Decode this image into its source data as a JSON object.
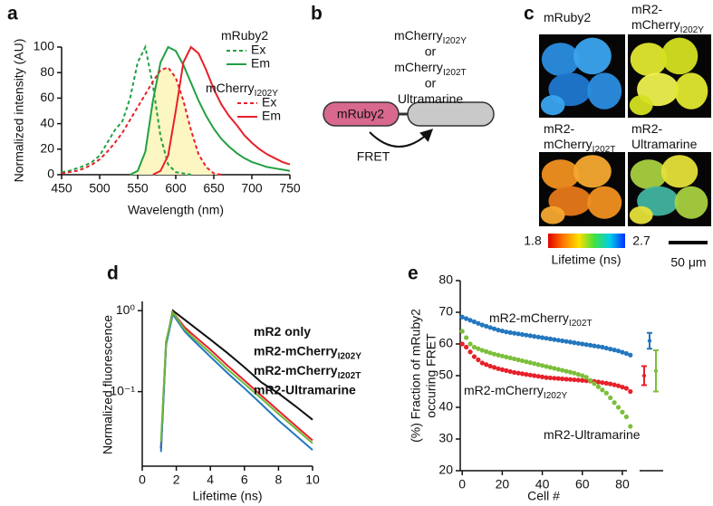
{
  "chart_data": [
    {
      "panel_label": "a",
      "type": "line",
      "xlabel": "Wavelength (nm)",
      "ylabel": "Normalized intensity (AU)",
      "xlim": [
        450,
        750
      ],
      "ylim": [
        0,
        100
      ],
      "xticks": [
        450,
        500,
        550,
        600,
        650,
        700,
        750
      ],
      "yticks": [
        0,
        20,
        40,
        60,
        80,
        100
      ],
      "x": [
        450,
        460,
        470,
        480,
        490,
        500,
        510,
        520,
        530,
        540,
        550,
        560,
        570,
        580,
        590,
        600,
        610,
        620,
        630,
        640,
        650,
        660,
        670,
        680,
        690,
        700,
        710,
        720,
        730,
        740,
        750
      ],
      "shade_between": [
        1,
        2
      ],
      "shade_color": "#fbf6c2",
      "legend_groups": [
        {
          "name": "mRuby2",
          "color": "#22a044"
        },
        {
          "name": "mCherry",
          "name_sub": "I202Y",
          "color": "#e8202a"
        }
      ],
      "series": [
        {
          "name": "Ex",
          "group": 0,
          "dash": true,
          "color": "#22a044",
          "values": [
            2,
            3,
            5,
            7,
            10,
            15,
            25,
            35,
            42,
            60,
            88,
            100,
            70,
            30,
            8,
            2,
            1,
            0,
            null,
            null,
            null,
            null,
            null,
            null,
            null,
            null,
            null,
            null,
            null,
            null,
            null
          ]
        },
        {
          "name": "Em",
          "group": 0,
          "dash": false,
          "color": "#22a044",
          "values": [
            null,
            null,
            null,
            null,
            null,
            null,
            null,
            null,
            null,
            0,
            3,
            18,
            58,
            88,
            100,
            97,
            86,
            72,
            58,
            46,
            36,
            28,
            22,
            17,
            13,
            10,
            8,
            6,
            5,
            4,
            3
          ]
        },
        {
          "name": "Ex",
          "group": 1,
          "dash": true,
          "color": "#e8202a",
          "values": [
            1,
            2,
            3,
            5,
            8,
            12,
            18,
            25,
            33,
            43,
            53,
            63,
            73,
            82,
            84,
            76,
            58,
            35,
            16,
            6,
            1,
            0,
            null,
            null,
            null,
            null,
            null,
            null,
            null,
            null,
            null
          ]
        },
        {
          "name": "Em",
          "group": 1,
          "dash": false,
          "color": "#e8202a",
          "values": [
            null,
            null,
            null,
            null,
            null,
            null,
            null,
            null,
            null,
            null,
            null,
            null,
            0,
            3,
            15,
            50,
            88,
            100,
            95,
            82,
            67,
            55,
            46,
            39,
            31,
            25,
            20,
            16,
            13,
            10,
            8
          ]
        }
      ]
    },
    {
      "panel_label": "d",
      "type": "line",
      "log_y": true,
      "xlabel": "Lifetime (ns)",
      "ylabel": "Normalized fluorescence",
      "xlim": [
        0,
        10
      ],
      "ylim": [
        0.012,
        1.3
      ],
      "xticks": [
        0,
        2,
        4,
        6,
        8,
        10
      ],
      "yticks": [
        {
          "value": 0.1,
          "label": "10⁻¹"
        },
        {
          "value": 1,
          "label": "10⁰"
        }
      ],
      "x": [
        1.1,
        1.4,
        1.8,
        2.5,
        3,
        4,
        5,
        6,
        7,
        8,
        9,
        10
      ],
      "series": [
        {
          "name": "mR2 only",
          "color": "#111111",
          "values": [
            0.02,
            0.4,
            1.0,
            0.77,
            0.64,
            0.44,
            0.3,
            0.2,
            0.13,
            0.095,
            0.066,
            0.045
          ]
        },
        {
          "name": "mR2-mCherry",
          "name_sub": "I202Y",
          "color": "#e8202a",
          "values": [
            0.02,
            0.4,
            0.95,
            0.62,
            0.5,
            0.33,
            0.21,
            0.137,
            0.089,
            0.058,
            0.038,
            0.025
          ]
        },
        {
          "name": "mR2-mCherry",
          "name_sub": "I202T",
          "color": "#2277c0",
          "values": [
            0.018,
            0.38,
            0.9,
            0.55,
            0.43,
            0.27,
            0.17,
            0.11,
            0.07,
            0.044,
            0.029,
            0.019
          ]
        },
        {
          "name": "mR2-Ultramarine",
          "color": "#6cb83a",
          "values": [
            0.024,
            0.42,
            0.95,
            0.58,
            0.46,
            0.3,
            0.19,
            0.125,
            0.082,
            0.053,
            0.035,
            0.023
          ]
        }
      ]
    },
    {
      "panel_label": "e",
      "type": "scatter",
      "xlabel": "Cell #",
      "ylabel": [
        "(%) Fraction of mRuby2",
        "occuring FRET"
      ],
      "xlim": [
        -1,
        85
      ],
      "ylim": [
        20,
        80
      ],
      "xticks": [
        0,
        20,
        40,
        60,
        80
      ],
      "yticks": [
        20,
        30,
        40,
        50,
        60,
        70,
        80
      ],
      "x": [
        0,
        2,
        4,
        6,
        8,
        10,
        12,
        14,
        16,
        18,
        20,
        22,
        24,
        26,
        28,
        30,
        32,
        34,
        36,
        38,
        40,
        42,
        44,
        46,
        48,
        50,
        52,
        54,
        56,
        58,
        60,
        62,
        64,
        66,
        68,
        70,
        72,
        74,
        76,
        78,
        80,
        82,
        84
      ],
      "series": [
        {
          "name": "mR2-mCherry",
          "name_sub": "I202Y",
          "color": "#e8202a",
          "mean": 50,
          "error": 3,
          "values": [
            60,
            59,
            57.5,
            56,
            55,
            54,
            53.5,
            53,
            52.6,
            52.2,
            51.9,
            51.6,
            51.3,
            51,
            50.8,
            50.6,
            50.4,
            50.2,
            50,
            49.8,
            49.6,
            49.4,
            49.3,
            49.2,
            49.1,
            49,
            48.9,
            48.8,
            48.7,
            48.6,
            48.5,
            48.4,
            48.3,
            48.2,
            48,
            47.8,
            47.6,
            47.4,
            47.1,
            46.8,
            46.4,
            46,
            45
          ]
        },
        {
          "name": "mR2-mCherry",
          "name_sub": "I202T",
          "color": "#2277c0",
          "mean": 61,
          "error": 2.5,
          "values": [
            68.5,
            68,
            67.5,
            67,
            66.5,
            66,
            65.6,
            65.2,
            64.8,
            64.4,
            64.1,
            63.8,
            63.6,
            63.4,
            63.2,
            63,
            62.8,
            62.6,
            62.4,
            62.2,
            62,
            61.8,
            61.6,
            61.4,
            61.2,
            61,
            60.8,
            60.6,
            60.4,
            60.2,
            60,
            59.8,
            59.6,
            59.4,
            59.2,
            59,
            58.7,
            58.4,
            58.1,
            57.8,
            57.4,
            57,
            56.5
          ]
        },
        {
          "name": "mR2-Ultramarine",
          "color": "#7cbf3a",
          "mean": 51.5,
          "error": 6.5,
          "values": [
            64,
            62,
            60,
            59,
            58.5,
            58,
            57.6,
            57.2,
            56.8,
            56.5,
            56.2,
            55.9,
            55.6,
            55.3,
            55,
            54.7,
            54.4,
            54.1,
            53.8,
            53.5,
            53.2,
            52.9,
            52.6,
            52.3,
            52,
            51.7,
            51.4,
            51.1,
            50.8,
            50.4,
            50,
            49.5,
            48.5,
            47.5,
            46.5,
            45.5,
            44.5,
            43,
            41.5,
            40,
            38.5,
            37,
            34
          ]
        }
      ]
    }
  ],
  "panel_b": {
    "panel_label": "b",
    "acceptor_lines": [
      {
        "text": "mCherry",
        "sub": "I202Y"
      },
      {
        "text": "or"
      },
      {
        "text": "mCherry",
        "sub": "I202T"
      },
      {
        "text": "or"
      },
      {
        "text": "Ultramarine"
      }
    ],
    "donor": "mRuby2",
    "donor_color": "#d9688f",
    "acceptor_color": "#c9c9c9",
    "arrow_label": "FRET"
  },
  "panel_c": {
    "panel_label": "c",
    "images": [
      {
        "label": [
          {
            "text": "mRuby2"
          }
        ],
        "colors": [
          "#2a8de0",
          "#3aa4ee",
          "#1f78d0"
        ]
      },
      {
        "label": [
          {
            "text": "mR2-"
          },
          {
            "text": "mCherry",
            "sub": "I202Y"
          }
        ],
        "colors": [
          "#e2e830",
          "#d4e020",
          "#eef050"
        ]
      },
      {
        "label": [
          {
            "text": "mR2-"
          },
          {
            "text": "mCherry",
            "sub": "I202T"
          }
        ],
        "colors": [
          "#f09020",
          "#f5a830",
          "#e67818"
        ]
      },
      {
        "label": [
          {
            "text": "mR2-"
          },
          {
            "text": "Ultramarine"
          }
        ],
        "colors": [
          "#a8d040",
          "#e6e03a",
          "#40b4a0"
        ]
      }
    ],
    "colorbar": {
      "range": [
        1.8,
        2.7
      ],
      "label": "Lifetime (ns)"
    },
    "scale_bar": "50 μm"
  }
}
